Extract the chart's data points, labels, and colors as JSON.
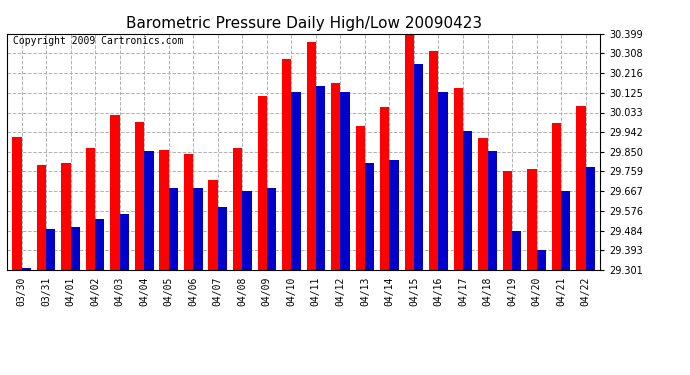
{
  "title": "Barometric Pressure Daily High/Low 20090423",
  "copyright": "Copyright 2009 Cartronics.com",
  "dates": [
    "03/30",
    "03/31",
    "04/01",
    "04/02",
    "04/03",
    "04/04",
    "04/05",
    "04/06",
    "04/07",
    "04/08",
    "04/09",
    "04/10",
    "04/11",
    "04/12",
    "04/13",
    "04/14",
    "04/15",
    "04/16",
    "04/17",
    "04/18",
    "04/19",
    "04/20",
    "04/21",
    "04/22"
  ],
  "highs": [
    29.92,
    29.79,
    29.8,
    29.87,
    30.02,
    29.99,
    29.86,
    29.84,
    29.72,
    29.87,
    30.11,
    30.28,
    30.36,
    30.17,
    29.97,
    30.06,
    30.4,
    30.32,
    30.145,
    29.915,
    29.76,
    29.77,
    29.985,
    30.065
  ],
  "lows": [
    29.31,
    29.49,
    29.5,
    29.54,
    29.56,
    29.855,
    29.68,
    29.68,
    29.595,
    29.67,
    29.68,
    30.13,
    30.155,
    30.13,
    29.8,
    29.81,
    30.26,
    30.13,
    29.945,
    29.855,
    29.48,
    29.395,
    29.67,
    29.78
  ],
  "bar_width": 0.38,
  "ymin": 29.301,
  "ymax": 30.399,
  "yticks": [
    29.301,
    29.393,
    29.484,
    29.576,
    29.667,
    29.759,
    29.85,
    29.942,
    30.033,
    30.125,
    30.216,
    30.308,
    30.399
  ],
  "high_color": "#ff0000",
  "low_color": "#0000cc",
  "background_color": "#ffffff",
  "grid_color": "#aaaaaa",
  "title_fontsize": 11,
  "label_fontsize": 7,
  "ytick_fontsize": 7,
  "copyright_fontsize": 7
}
